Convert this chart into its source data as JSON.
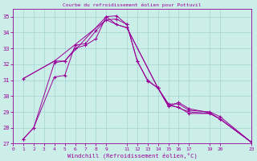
{
  "title": "Courbe du refroidissement éolien pour Pottuvil",
  "xlabel": "Windchill (Refroidissement éolien,°C)",
  "bg_color": "#cceee8",
  "line_color": "#990099",
  "grid_color": "#99cccc",
  "axis_color": "#990099",
  "text_color": "#990099",
  "xlim": [
    0,
    23
  ],
  "ylim": [
    27,
    35.5
  ],
  "xticks": [
    0,
    1,
    2,
    3,
    4,
    5,
    6,
    7,
    8,
    9,
    11,
    12,
    13,
    14,
    15,
    16,
    17,
    19,
    20,
    23
  ],
  "yticks": [
    27,
    28,
    29,
    30,
    31,
    32,
    33,
    34,
    35
  ],
  "series": [
    {
      "x": [
        1,
        2,
        4,
        5,
        6,
        7,
        8,
        9,
        10,
        11,
        12,
        13,
        14,
        15,
        16,
        17,
        19,
        20,
        23
      ],
      "y": [
        27.3,
        28.0,
        31.2,
        31.3,
        33.2,
        33.3,
        34.1,
        34.8,
        34.85,
        34.5,
        32.2,
        30.95,
        30.5,
        29.35,
        29.6,
        29.2,
        28.95,
        28.55,
        27.1
      ],
      "marker": true
    },
    {
      "x": [
        1,
        2,
        4,
        5,
        6,
        7,
        8,
        9,
        10,
        11,
        12,
        13,
        14,
        15,
        16,
        17,
        19,
        20,
        23
      ],
      "y": [
        27.3,
        28.0,
        32.1,
        32.2,
        33.0,
        33.2,
        33.6,
        35.0,
        35.05,
        34.5,
        32.2,
        31.0,
        30.5,
        29.4,
        29.3,
        28.9,
        28.9,
        28.55,
        27.1
      ],
      "marker": true
    },
    {
      "x": [
        1,
        4,
        5,
        9,
        10,
        11,
        14,
        15,
        16,
        17,
        19,
        20,
        23
      ],
      "y": [
        31.1,
        32.2,
        32.2,
        35.0,
        34.5,
        34.3,
        30.5,
        29.5,
        29.5,
        29.1,
        29.0,
        28.7,
        27.1
      ],
      "marker": true
    },
    {
      "x": [
        1,
        4,
        9,
        10,
        11,
        14,
        15,
        17,
        19,
        20,
        23
      ],
      "y": [
        31.1,
        32.2,
        34.8,
        34.5,
        34.3,
        30.5,
        29.5,
        29.0,
        28.9,
        28.55,
        27.1
      ],
      "marker": false
    }
  ]
}
